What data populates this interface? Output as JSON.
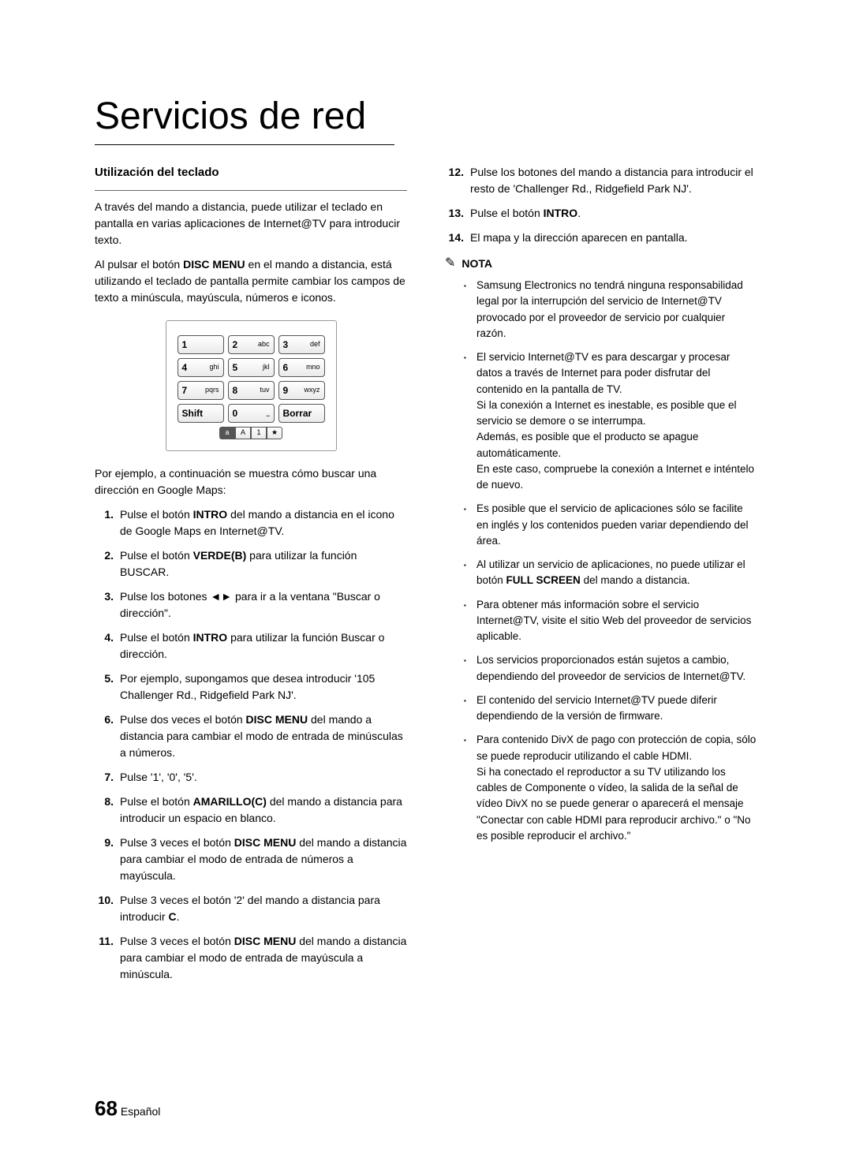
{
  "title": "Servicios de red",
  "section_heading": "Utilización del teclado",
  "intro_p1": "A través del mando a distancia, puede utilizar el teclado en pantalla en varias aplicaciones de Internet@TV para introducir texto.",
  "intro_p2_a": "Al pulsar el botón ",
  "intro_p2_bold": "DISC MENU",
  "intro_p2_b": " en el mando a distancia, está utilizando el teclado de pantalla permite cambiar los campos de texto a minúscula, mayúscula, números e iconos.",
  "keypad": {
    "rows": [
      [
        {
          "n": "1",
          "l": ""
        },
        {
          "n": "2",
          "l": "abc"
        },
        {
          "n": "3",
          "l": "def"
        }
      ],
      [
        {
          "n": "4",
          "l": "ghi"
        },
        {
          "n": "5",
          "l": "jkl"
        },
        {
          "n": "6",
          "l": "mno"
        }
      ],
      [
        {
          "n": "7",
          "l": "pqrs"
        },
        {
          "n": "8",
          "l": "tuv"
        },
        {
          "n": "9",
          "l": "wxyz"
        }
      ],
      [
        {
          "n": "Shift",
          "l": ""
        },
        {
          "n": "0",
          "l": "⎵"
        },
        {
          "n": "Borrar",
          "l": ""
        }
      ]
    ],
    "modes": [
      "a",
      "A",
      "1",
      "★"
    ]
  },
  "example_intro": "Por ejemplo, a continuación se muestra cómo buscar una dirección en Google Maps:",
  "steps": [
    {
      "n": "1.",
      "parts": [
        {
          "t": "Pulse el botón "
        },
        {
          "t": "INTRO",
          "b": true
        },
        {
          "t": " del mando a distancia en el icono de Google Maps en Internet@TV."
        }
      ]
    },
    {
      "n": "2.",
      "parts": [
        {
          "t": "Pulse el botón "
        },
        {
          "t": "VERDE(B)",
          "b": true
        },
        {
          "t": " para utilizar la función BUSCAR."
        }
      ]
    },
    {
      "n": "3.",
      "parts": [
        {
          "t": "Pulse los botones ◄► para ir a la ventana \"Buscar o dirección\"."
        }
      ]
    },
    {
      "n": "4.",
      "parts": [
        {
          "t": "Pulse el botón "
        },
        {
          "t": "INTRO",
          "b": true
        },
        {
          "t": " para utilizar la función Buscar o dirección."
        }
      ]
    },
    {
      "n": "5.",
      "parts": [
        {
          "t": "Por ejemplo, supongamos que desea introducir '105 Challenger Rd., Ridgefield Park NJ'."
        }
      ]
    },
    {
      "n": "6.",
      "parts": [
        {
          "t": "Pulse dos veces el botón "
        },
        {
          "t": "DISC MENU",
          "b": true
        },
        {
          "t": " del mando a distancia para cambiar el modo de entrada de minúsculas a números."
        }
      ]
    },
    {
      "n": "7.",
      "parts": [
        {
          "t": "Pulse '1', '0', '5'."
        }
      ]
    },
    {
      "n": "8.",
      "parts": [
        {
          "t": "Pulse el botón "
        },
        {
          "t": "AMARILLO(C)",
          "b": true
        },
        {
          "t": " del mando a distancia para introducir un espacio en blanco."
        }
      ]
    },
    {
      "n": "9.",
      "parts": [
        {
          "t": "Pulse 3 veces el botón "
        },
        {
          "t": "DISC MENU",
          "b": true
        },
        {
          "t": " del mando a distancia para cambiar el modo de entrada de números a mayúscula."
        }
      ]
    },
    {
      "n": "10.",
      "parts": [
        {
          "t": "Pulse 3 veces el botón '2' del mando a distancia para introducir "
        },
        {
          "t": "C",
          "b": true
        },
        {
          "t": "."
        }
      ]
    },
    {
      "n": "11.",
      "parts": [
        {
          "t": "Pulse 3 veces el botón "
        },
        {
          "t": "DISC MENU",
          "b": true
        },
        {
          "t": " del mando a distancia para cambiar el modo de entrada de mayúscula a minúscula."
        }
      ]
    }
  ],
  "steps_right": [
    {
      "n": "12.",
      "parts": [
        {
          "t": "Pulse los botones del mando a distancia para introducir el resto de 'Challenger Rd., Ridgefield Park NJ'."
        }
      ]
    },
    {
      "n": "13.",
      "parts": [
        {
          "t": "Pulse el botón "
        },
        {
          "t": "INTRO",
          "b": true
        },
        {
          "t": "."
        }
      ]
    },
    {
      "n": "14.",
      "parts": [
        {
          "t": "El mapa y la dirección aparecen en pantalla."
        }
      ]
    }
  ],
  "nota_label": "NOTA",
  "notes": [
    "Samsung Electronics no tendrá ninguna responsabilidad legal por la interrupción del servicio de Internet@TV provocado por el proveedor de servicio por cualquier razón.",
    "El servicio Internet@TV es para descargar y procesar datos a través de Internet para poder disfrutar del contenido en la pantalla de TV.\nSi la conexión a Internet es inestable, es posible que el servicio se demore o se interrumpa.\nAdemás, es posible que el producto se apague automáticamente.\nEn este caso, compruebe la conexión a Internet e inténtelo de nuevo.",
    "Es posible que el servicio de aplicaciones sólo se facilite en inglés y los contenidos pueden variar dependiendo del área.",
    "Al utilizar un servicio de aplicaciones, no puede utilizar el botón FULL SCREEN del mando a distancia.",
    "Para obtener más información sobre el servicio Internet@TV, visite el sitio Web del proveedor de servicios aplicable.",
    "Los servicios proporcionados están sujetos a cambio, dependiendo del proveedor de servicios de Internet@TV.",
    "El contenido del servicio Internet@TV puede diferir dependiendo de la versión de firmware.",
    "Para contenido DivX de pago con protección de copia, sólo se puede reproducir utilizando el cable HDMI.\nSi ha conectado el reproductor a su TV utilizando los cables de Componente o vídeo, la salida de la señal de vídeo DivX no se puede generar o aparecerá el mensaje \"Conectar con cable HDMI para reproducir archivo.\" o \"No es posible reproducir el archivo.\""
  ],
  "note_bold_map": {
    "3": "FULL SCREEN"
  },
  "page_number": "68",
  "page_lang": "Español"
}
